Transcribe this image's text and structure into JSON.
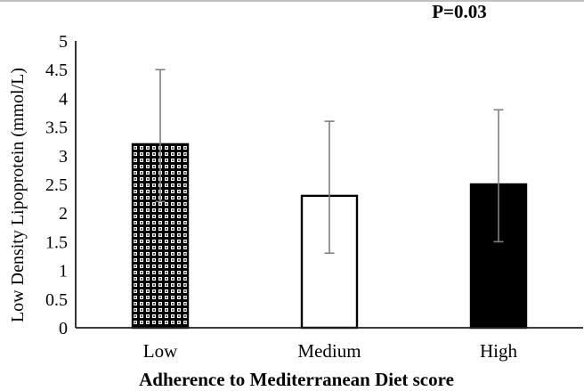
{
  "chart_data": {
    "type": "bar",
    "title": "",
    "annotation": {
      "text": "P=0.03"
    },
    "xlabel": "Adherence to Mediterranean Diet score",
    "ylabel": "Low Density Lipoprotein (mmol/L)",
    "categories": [
      "Low",
      "Medium",
      "High"
    ],
    "values": [
      3.2,
      2.3,
      2.5
    ],
    "error_upper": [
      4.5,
      3.6,
      3.8
    ],
    "error_lower": [
      2.2,
      1.3,
      1.5
    ],
    "bar_styles": [
      "checkered",
      "white",
      "black"
    ],
    "ylim": [
      0,
      5
    ],
    "ytick_step": 0.5,
    "ytick_labels": [
      "0",
      "0.5",
      "1",
      "1.5",
      "2",
      "2.5",
      "3",
      "3.5",
      "4",
      "4.5",
      "5"
    ],
    "grid": false,
    "legend": "none",
    "colors": {
      "axis": "#1f1f1f",
      "error_bar": "#7f7f7f",
      "bar_border": "#000000",
      "bar_black_fill": "#000000",
      "bar_white_fill": "#ffffff",
      "text": "#000000",
      "top_rule": "#9b9b9b"
    }
  }
}
